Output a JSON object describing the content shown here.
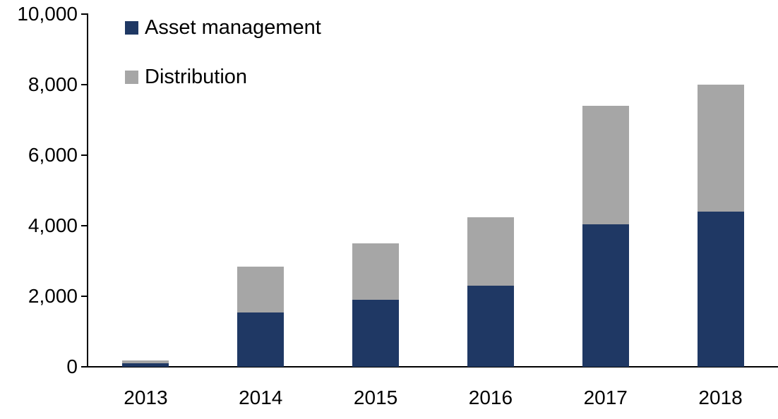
{
  "chart_data": {
    "type": "bar",
    "stacked": true,
    "title": "",
    "xlabel": "",
    "ylabel": "",
    "categories": [
      "2013",
      "2014",
      "2015",
      "2016",
      "2017",
      "2018"
    ],
    "series": [
      {
        "name": "Asset management",
        "color": "#1F3864",
        "values": [
          100,
          1550,
          1900,
          2300,
          4050,
          4400
        ]
      },
      {
        "name": "Distribution",
        "color": "#A6A6A6",
        "values": [
          90,
          1300,
          1600,
          1950,
          3350,
          3600
        ]
      }
    ],
    "totals": [
      190,
      2850,
      3500,
      4250,
      7400,
      8000
    ],
    "ylim": [
      0,
      10000
    ],
    "yticks": [
      0,
      2000,
      4000,
      6000,
      8000,
      10000
    ],
    "ytick_labels": [
      "0",
      "2,000",
      "4,000",
      "6,000",
      "8,000",
      "10,000"
    ],
    "legend_position": "top-left",
    "grid": false,
    "axis_color": "#000000",
    "text_color": "#000000"
  },
  "legend": {
    "items": [
      {
        "label": "Asset management",
        "color": "#1F3864"
      },
      {
        "label": "Distribution",
        "color": "#A6A6A6"
      }
    ]
  }
}
